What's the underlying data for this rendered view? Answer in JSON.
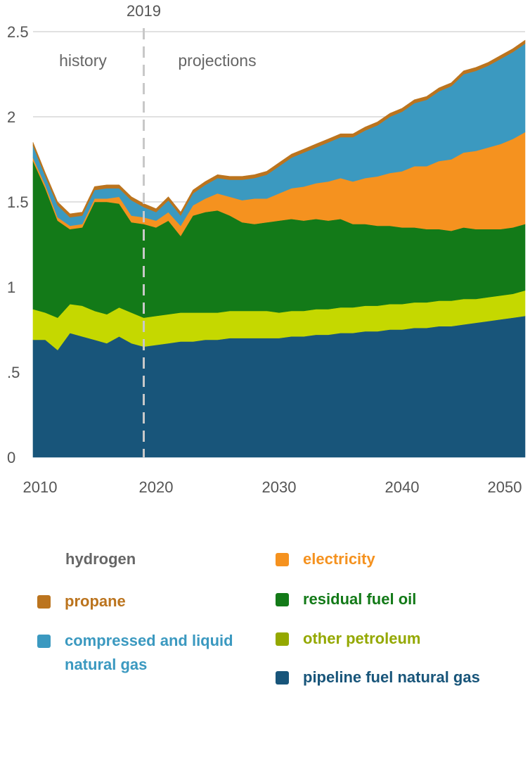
{
  "chart_data": {
    "type": "area",
    "stacked": true,
    "title": "",
    "xlabel": "",
    "ylabel": "",
    "xlim": [
      2010,
      2050
    ],
    "ylim": [
      0,
      2.5
    ],
    "x_ticks": [
      "2010",
      "2020",
      "2030",
      "2040",
      "2050"
    ],
    "y_ticks": [
      "0",
      ".5",
      "1",
      "1.5",
      "2",
      "2.5"
    ],
    "annotations": {
      "divider_year": "2019",
      "history": "history",
      "projections": "projections"
    },
    "x": [
      2010,
      2011,
      2012,
      2013,
      2014,
      2015,
      2016,
      2017,
      2018,
      2019,
      2020,
      2021,
      2022,
      2023,
      2024,
      2025,
      2026,
      2027,
      2028,
      2029,
      2030,
      2031,
      2032,
      2033,
      2034,
      2035,
      2036,
      2037,
      2038,
      2039,
      2040,
      2041,
      2042,
      2043,
      2044,
      2045,
      2046,
      2047,
      2048,
      2049,
      2050
    ],
    "series": [
      {
        "name": "pipeline fuel natural gas",
        "color": "#18557a",
        "values": [
          0.69,
          0.69,
          0.63,
          0.73,
          0.71,
          0.69,
          0.67,
          0.71,
          0.67,
          0.65,
          0.66,
          0.67,
          0.68,
          0.68,
          0.69,
          0.69,
          0.7,
          0.7,
          0.7,
          0.7,
          0.7,
          0.71,
          0.71,
          0.72,
          0.72,
          0.73,
          0.73,
          0.74,
          0.74,
          0.75,
          0.75,
          0.76,
          0.76,
          0.77,
          0.77,
          0.78,
          0.79,
          0.8,
          0.81,
          0.82,
          0.83
        ]
      },
      {
        "name": "other petroleum",
        "color": "#c5d800",
        "values": [
          0.18,
          0.16,
          0.19,
          0.17,
          0.18,
          0.17,
          0.17,
          0.17,
          0.18,
          0.17,
          0.17,
          0.17,
          0.17,
          0.17,
          0.16,
          0.16,
          0.16,
          0.16,
          0.16,
          0.16,
          0.15,
          0.15,
          0.15,
          0.15,
          0.15,
          0.15,
          0.15,
          0.15,
          0.15,
          0.15,
          0.15,
          0.15,
          0.15,
          0.15,
          0.15,
          0.15,
          0.14,
          0.14,
          0.14,
          0.14,
          0.15
        ]
      },
      {
        "name": "residual fuel oil",
        "color": "#137a18",
        "values": [
          0.87,
          0.73,
          0.57,
          0.44,
          0.46,
          0.64,
          0.66,
          0.61,
          0.53,
          0.55,
          0.52,
          0.55,
          0.45,
          0.57,
          0.59,
          0.6,
          0.56,
          0.52,
          0.51,
          0.52,
          0.54,
          0.54,
          0.53,
          0.53,
          0.52,
          0.52,
          0.49,
          0.48,
          0.47,
          0.46,
          0.45,
          0.44,
          0.43,
          0.42,
          0.41,
          0.42,
          0.41,
          0.4,
          0.39,
          0.39,
          0.39
        ]
      },
      {
        "name": "electricity",
        "color": "#f5921f",
        "values": [
          0.02,
          0.02,
          0.02,
          0.02,
          0.02,
          0.02,
          0.02,
          0.04,
          0.04,
          0.04,
          0.04,
          0.05,
          0.06,
          0.06,
          0.08,
          0.1,
          0.11,
          0.13,
          0.15,
          0.14,
          0.16,
          0.18,
          0.2,
          0.21,
          0.23,
          0.24,
          0.25,
          0.27,
          0.29,
          0.31,
          0.33,
          0.36,
          0.37,
          0.4,
          0.42,
          0.44,
          0.46,
          0.48,
          0.5,
          0.52,
          0.54
        ]
      },
      {
        "name": "compressed and liquid natural gas",
        "color": "#3b99c0",
        "values": [
          0.07,
          0.05,
          0.07,
          0.05,
          0.05,
          0.05,
          0.06,
          0.05,
          0.09,
          0.06,
          0.05,
          0.07,
          0.06,
          0.07,
          0.08,
          0.09,
          0.1,
          0.12,
          0.12,
          0.14,
          0.16,
          0.18,
          0.2,
          0.21,
          0.23,
          0.24,
          0.26,
          0.28,
          0.3,
          0.33,
          0.35,
          0.37,
          0.39,
          0.41,
          0.43,
          0.46,
          0.47,
          0.48,
          0.5,
          0.51,
          0.52
        ]
      },
      {
        "name": "propane",
        "color": "#bb741e",
        "values": [
          0.02,
          0.02,
          0.02,
          0.02,
          0.02,
          0.02,
          0.02,
          0.02,
          0.02,
          0.02,
          0.02,
          0.02,
          0.02,
          0.02,
          0.02,
          0.02,
          0.02,
          0.02,
          0.02,
          0.02,
          0.02,
          0.02,
          0.02,
          0.02,
          0.02,
          0.02,
          0.02,
          0.02,
          0.02,
          0.02,
          0.02,
          0.02,
          0.02,
          0.02,
          0.02,
          0.02,
          0.02,
          0.02,
          0.02,
          0.02,
          0.02
        ]
      },
      {
        "name": "hydrogen",
        "color": "#ffffff",
        "values": [
          0,
          0,
          0,
          0,
          0,
          0,
          0,
          0,
          0,
          0,
          0,
          0,
          0,
          0,
          0,
          0,
          0,
          0,
          0,
          0,
          0,
          0,
          0,
          0,
          0,
          0,
          0,
          0,
          0,
          0,
          0,
          0,
          0,
          0,
          0,
          0,
          0,
          0,
          0,
          0,
          0
        ]
      }
    ]
  },
  "legend": {
    "hydrogen": {
      "label": "hydrogen",
      "text_color": "#666666"
    },
    "propane": {
      "label": "propane",
      "color": "#bb741e"
    },
    "cng": {
      "label": "compressed and liquid natural gas",
      "color": "#3b99c0"
    },
    "electricity": {
      "label": "electricity",
      "color": "#f5921f"
    },
    "residual": {
      "label": "residual fuel oil",
      "color": "#137a18"
    },
    "other_pet": {
      "label": "other petroleum",
      "color": "#94a800"
    },
    "pipeline": {
      "label": "pipeline fuel natural gas",
      "color": "#18557a"
    }
  }
}
